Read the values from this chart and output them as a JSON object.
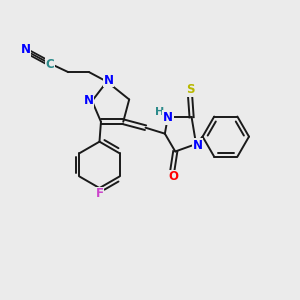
{
  "background_color": "#ebebeb",
  "bond_color": "#1a1a1a",
  "atom_colors": {
    "N": "#0000ff",
    "C": "#2d8b8b",
    "O": "#ff0000",
    "S": "#b8b800",
    "F": "#cc44cc",
    "H": "#2d8b8b"
  },
  "figsize": [
    3.0,
    3.0
  ],
  "dpi": 100
}
